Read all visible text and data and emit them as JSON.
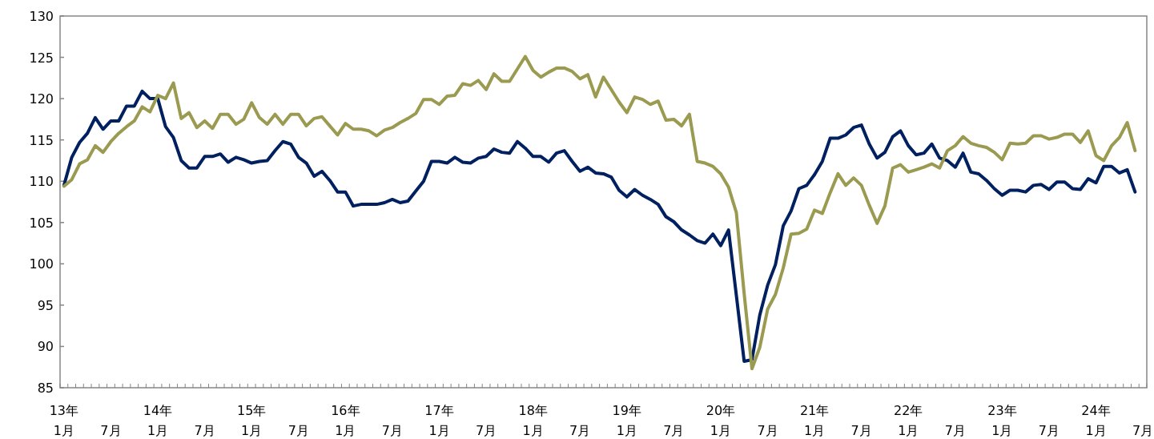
{
  "chart_data": {
    "type": "line",
    "ylim": [
      85,
      130
    ],
    "yticks": [
      85,
      90,
      95,
      100,
      105,
      110,
      115,
      120,
      125,
      130
    ],
    "categories": [
      "13年\n1月",
      null,
      null,
      null,
      null,
      null,
      "7月",
      null,
      null,
      null,
      null,
      null,
      "14年\n1月",
      null,
      null,
      null,
      null,
      null,
      "7月",
      null,
      null,
      null,
      null,
      null,
      "15年\n1月",
      null,
      null,
      null,
      null,
      null,
      "7月",
      null,
      null,
      null,
      null,
      null,
      "16年\n1月",
      null,
      null,
      null,
      null,
      null,
      "7月",
      null,
      null,
      null,
      null,
      null,
      "17年\n1月",
      null,
      null,
      null,
      null,
      null,
      "7月",
      null,
      null,
      null,
      null,
      null,
      "18年\n1月",
      null,
      null,
      null,
      null,
      null,
      "7月",
      null,
      null,
      null,
      null,
      null,
      "19年\n1月",
      null,
      null,
      null,
      null,
      null,
      "7月",
      null,
      null,
      null,
      null,
      null,
      "20年\n1月",
      null,
      null,
      null,
      null,
      null,
      "7月",
      null,
      null,
      null,
      null,
      null,
      "21年\n1月",
      null,
      null,
      null,
      null,
      null,
      "7月",
      null,
      null,
      null,
      null,
      null,
      "22年\n1月",
      null,
      null,
      null,
      null,
      null,
      "7月",
      null,
      null,
      null,
      null,
      null,
      "23年\n1月",
      null,
      null,
      null,
      null,
      null,
      "7月",
      null,
      null,
      null,
      null,
      null,
      "24年\n1月",
      null,
      null,
      null,
      null,
      null,
      "7月"
    ],
    "series": [
      {
        "color": "#002060",
        "values": [
          109.5,
          112.9,
          114.7,
          115.8,
          117.7,
          116.3,
          117.3,
          117.3,
          119.1,
          119.1,
          120.9,
          120.0,
          120.0,
          116.6,
          115.3,
          112.5,
          111.6,
          111.6,
          113.0,
          113.0,
          113.3,
          112.3,
          112.9,
          112.6,
          112.2,
          112.4,
          112.5,
          113.7,
          114.8,
          114.5,
          112.9,
          112.2,
          110.6,
          111.2,
          110.1,
          108.7,
          108.7,
          107.0,
          107.2,
          107.2,
          107.2,
          107.4,
          107.8,
          107.4,
          107.6,
          108.8,
          110.0,
          112.4,
          112.4,
          112.2,
          112.9,
          112.3,
          112.2,
          112.8,
          113.0,
          113.9,
          113.5,
          113.4,
          114.8,
          114.0,
          113.0,
          113.0,
          112.3,
          113.4,
          113.7,
          112.4,
          111.2,
          111.7,
          111.0,
          110.9,
          110.5,
          108.9,
          108.1,
          109.0,
          108.3,
          107.8,
          107.2,
          105.7,
          105.1,
          104.1,
          103.5,
          102.8,
          102.5,
          103.6,
          102.2,
          104.1,
          96.2,
          88.2,
          88.4,
          93.8,
          97.4,
          99.9,
          104.6,
          106.4,
          109.1,
          109.5,
          110.8,
          112.4,
          115.2,
          115.2,
          115.6,
          116.5,
          116.8,
          114.5,
          112.8,
          113.5,
          115.4,
          116.1,
          114.3,
          113.2,
          113.4,
          114.5,
          112.8,
          112.5,
          111.7,
          113.4,
          111.1,
          110.9,
          110.1,
          109.1,
          108.3,
          108.9,
          108.9,
          108.7,
          109.5,
          109.6,
          109.0,
          109.9,
          109.9,
          109.1,
          109.0,
          110.3,
          109.8,
          111.8,
          111.8,
          111.0,
          111.4,
          108.7,
          null
        ]
      },
      {
        "color": "#9a9a50",
        "values": [
          109.4,
          110.2,
          112.1,
          112.6,
          114.3,
          113.5,
          114.8,
          115.8,
          116.6,
          117.3,
          119.0,
          118.4,
          120.4,
          120.0,
          121.9,
          117.6,
          118.3,
          116.5,
          117.3,
          116.4,
          118.1,
          118.1,
          116.9,
          117.5,
          119.5,
          117.7,
          116.9,
          118.1,
          116.9,
          118.1,
          118.1,
          116.7,
          117.6,
          117.8,
          116.7,
          115.6,
          117.0,
          116.3,
          116.3,
          116.1,
          115.5,
          116.2,
          116.5,
          117.1,
          117.6,
          118.2,
          119.9,
          119.9,
          119.3,
          120.3,
          120.4,
          121.8,
          121.6,
          122.2,
          121.1,
          123.0,
          122.1,
          122.1,
          123.6,
          125.1,
          123.4,
          122.6,
          123.2,
          123.7,
          123.7,
          123.3,
          122.4,
          122.9,
          120.2,
          122.6,
          121.1,
          119.6,
          118.3,
          120.2,
          119.9,
          119.3,
          119.7,
          117.4,
          117.5,
          116.7,
          118.1,
          112.4,
          112.2,
          111.8,
          110.9,
          109.3,
          106.2,
          96.4,
          87.3,
          89.9,
          94.5,
          96.3,
          99.5,
          103.6,
          103.7,
          104.2,
          106.5,
          106.1,
          108.6,
          110.9,
          109.5,
          110.4,
          109.5,
          107.1,
          104.9,
          107.0,
          111.6,
          112.0,
          111.1,
          111.4,
          111.7,
          112.1,
          111.6,
          113.7,
          114.3,
          115.4,
          114.6,
          114.3,
          114.1,
          113.5,
          112.6,
          114.6,
          114.5,
          114.6,
          115.5,
          115.5,
          115.1,
          115.3,
          115.7,
          115.7,
          114.7,
          116.1,
          113.1,
          112.5,
          114.3,
          115.3,
          117.1,
          113.7,
          null
        ]
      }
    ]
  }
}
